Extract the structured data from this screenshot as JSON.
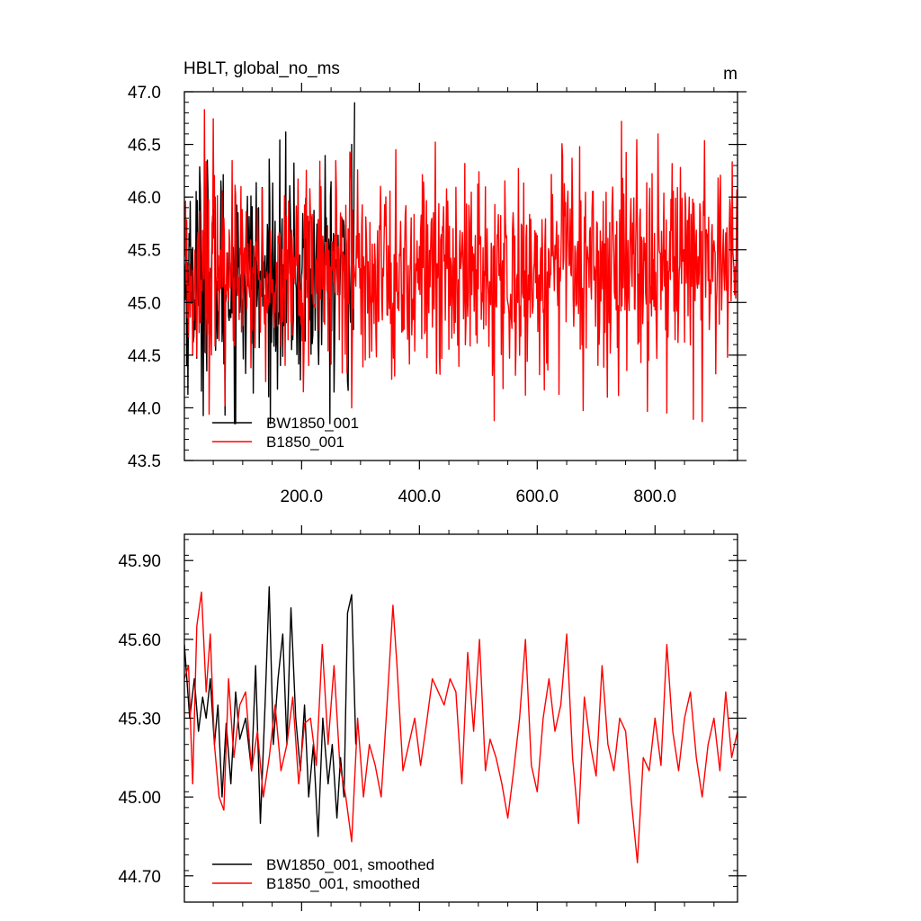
{
  "chart_data": [
    {
      "type": "line",
      "title": "HBLT, global_no_ms",
      "units": "m",
      "xlabel": "",
      "ylabel": "",
      "xlim": [
        1,
        940
      ],
      "ylim": [
        43.5,
        47.0
      ],
      "x_ticks": [
        200,
        400,
        600,
        800
      ],
      "x_tick_labels": [
        "200.0",
        "400.0",
        "600.0",
        "800.0"
      ],
      "y_ticks": [
        43.5,
        44.0,
        44.5,
        45.0,
        45.5,
        46.0,
        46.5,
        47.0
      ],
      "y_tick_labels": [
        "43.5",
        "44.0",
        "44.5",
        "45.0",
        "45.5",
        "46.0",
        "46.5",
        "47.0"
      ],
      "legend_position": "bottom-left",
      "series": [
        {
          "name": "BW1850_001",
          "color": "#000000",
          "x_start": 1,
          "x_end": 290,
          "mean": 45.25,
          "amplitude": 0.62,
          "extremes": [
            [
              70,
              43.93
            ],
            [
              290,
              46.9
            ],
            [
              255,
              44.1
            ],
            [
              40,
              46.35
            ],
            [
              285,
              46.5
            ],
            [
              255,
              44.15
            ]
          ]
        },
        {
          "name": "B1850_001",
          "color": "#ff0000",
          "x_start": 1,
          "x_end": 940,
          "mean": 45.3,
          "amplitude": 0.55,
          "extremes": [
            [
              35,
              46.83
            ],
            [
              70,
              44.02
            ],
            [
              285,
              44.0
            ],
            [
              360,
              46.45
            ],
            [
              820,
              43.95
            ],
            [
              865,
              43.89
            ],
            [
              880,
              43.87
            ],
            [
              580,
              44.12
            ]
          ]
        }
      ]
    },
    {
      "type": "line",
      "title": "",
      "xlabel": "",
      "ylabel": "",
      "xlim": [
        1,
        940
      ],
      "ylim": [
        44.6,
        46.0
      ],
      "x_ticks": [
        200,
        400,
        600,
        800
      ],
      "y_ticks": [
        44.7,
        45.0,
        45.3,
        45.6,
        45.9
      ],
      "y_tick_labels": [
        "44.70",
        "45.00",
        "45.30",
        "45.60",
        "45.90"
      ],
      "legend_position": "bottom-left",
      "series": [
        {
          "name": "BW1850_001, smoothed",
          "color": "#000000",
          "x": [
            1,
            10,
            18,
            25,
            32,
            38,
            45,
            52,
            58,
            65,
            72,
            80,
            88,
            95,
            105,
            115,
            122,
            130,
            138,
            145,
            152,
            160,
            168,
            175,
            182,
            190,
            198,
            205,
            212,
            220,
            228,
            236,
            245,
            252,
            260,
            266,
            272,
            278,
            285,
            292
          ],
          "y": [
            45.58,
            45.3,
            45.45,
            45.25,
            45.38,
            45.3,
            45.45,
            45.2,
            45.35,
            45.0,
            45.28,
            45.05,
            45.4,
            45.22,
            45.3,
            45.1,
            45.5,
            44.9,
            45.35,
            45.8,
            45.2,
            45.45,
            45.62,
            45.2,
            45.72,
            45.3,
            45.1,
            45.35,
            45.0,
            45.2,
            44.85,
            45.3,
            45.05,
            45.2,
            44.92,
            45.15,
            45.0,
            45.7,
            45.77,
            45.2
          ]
        },
        {
          "name": "B1850_001, smoothed",
          "color": "#ff0000",
          "x": [
            1,
            8,
            15,
            22,
            30,
            38,
            45,
            52,
            60,
            68,
            76,
            85,
            95,
            105,
            115,
            125,
            135,
            145,
            155,
            165,
            175,
            185,
            195,
            205,
            215,
            225,
            235,
            245,
            255,
            265,
            275,
            285,
            295,
            305,
            315,
            325,
            335,
            345,
            355,
            362,
            372,
            382,
            392,
            402,
            412,
            422,
            432,
            442,
            452,
            462,
            472,
            482,
            492,
            502,
            512,
            520,
            530,
            540,
            550,
            560,
            570,
            580,
            590,
            600,
            610,
            620,
            630,
            640,
            650,
            660,
            670,
            680,
            690,
            700,
            710,
            720,
            730,
            740,
            750,
            760,
            770,
            780,
            790,
            800,
            810,
            820,
            830,
            840,
            850,
            860,
            870,
            880,
            890,
            900,
            910,
            920,
            930,
            940
          ],
          "y": [
            45.45,
            45.5,
            45.05,
            45.65,
            45.78,
            45.4,
            45.62,
            45.2,
            45.0,
            44.95,
            45.45,
            45.15,
            45.35,
            45.4,
            45.1,
            45.25,
            45.0,
            45.15,
            45.35,
            45.1,
            45.2,
            45.38,
            45.05,
            45.28,
            45.3,
            45.12,
            45.58,
            45.2,
            45.5,
            45.12,
            45.0,
            44.83,
            45.3,
            45.0,
            45.2,
            45.12,
            45.0,
            45.35,
            45.73,
            45.5,
            45.1,
            45.2,
            45.3,
            45.12,
            45.28,
            45.45,
            45.4,
            45.35,
            45.45,
            45.4,
            45.05,
            45.55,
            45.25,
            45.6,
            45.1,
            45.22,
            45.15,
            45.05,
            44.92,
            45.1,
            45.3,
            45.6,
            45.12,
            45.02,
            45.3,
            45.45,
            45.25,
            45.35,
            45.62,
            45.15,
            44.9,
            45.38,
            45.2,
            45.08,
            45.5,
            45.2,
            45.1,
            45.3,
            45.25,
            44.98,
            44.75,
            45.15,
            45.1,
            45.3,
            45.12,
            45.58,
            45.25,
            45.1,
            45.3,
            45.4,
            45.15,
            45.0,
            45.2,
            45.3,
            45.1,
            45.4,
            45.15,
            45.25
          ]
        }
      ]
    }
  ]
}
